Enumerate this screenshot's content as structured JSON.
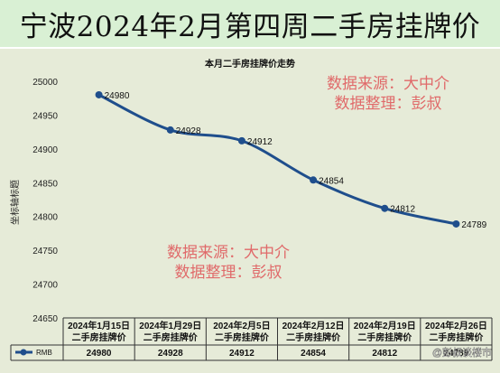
{
  "title": "宁波2024年2月第四周二手房挂牌价",
  "chart_data": {
    "type": "line",
    "title": "本月二手房挂牌价走势",
    "ylabel": "坐标轴标题",
    "ylim": [
      24650,
      25000
    ],
    "yticks": [
      24650,
      24700,
      24750,
      24800,
      24850,
      24900,
      24950,
      25000
    ],
    "categories": [
      "2024年1月15日 二手房挂牌价",
      "2024年1月29日 二手房挂牌价",
      "2024年2月5日 二手房挂牌价",
      "2024年2月12日 二手房挂牌价",
      "2024年2月19日 二手房挂牌价",
      "2024年2月26日 二手房挂牌价"
    ],
    "category_lines": [
      [
        "2024年1月15日",
        "二手房挂牌价"
      ],
      [
        "2024年1月29日",
        "二手房挂牌价"
      ],
      [
        "2024年2月5日",
        "二手房挂牌价"
      ],
      [
        "2024年2月12日",
        "二手房挂牌价"
      ],
      [
        "2024年2月19日",
        "二手房挂牌价"
      ],
      [
        "2024年2月26日",
        "二手房挂牌价"
      ]
    ],
    "series": [
      {
        "name": "RMB",
        "values": [
          24980,
          24928,
          24912,
          24854,
          24812,
          24789
        ],
        "color": "#1f4e8c"
      }
    ],
    "grid": false,
    "legend": "data-table"
  },
  "watermark_top": [
    "数据来源：大中介",
    "数据整理：彭叔"
  ],
  "watermark_mid": [
    "数据来源：大中介",
    "数据整理：彭叔"
  ],
  "footer_handle": "@彭叔谈楼市",
  "colors": {
    "title_bg": "#d9f0d4",
    "chart_bg": "#e6ebd8",
    "line": "#1f4e8c",
    "watermark": "#e06a6a"
  }
}
